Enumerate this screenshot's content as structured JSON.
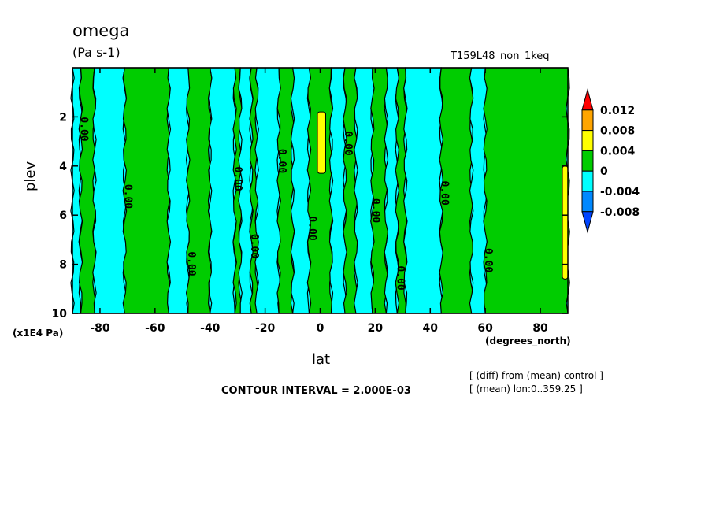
{
  "chart_data": {
    "type": "heatmap",
    "title": "omega",
    "units": "(Pa s-1)",
    "experiment": "T159L48_non_1keq",
    "xlabel": "lat",
    "x_units": "(degrees_north)",
    "ylabel": "plev",
    "y_units": "(x1E4 Pa)",
    "x_ticks": [
      "-80",
      "-60",
      "-40",
      "-20",
      "0",
      "20",
      "40",
      "60",
      "80"
    ],
    "x_tick_values": [
      -80,
      -60,
      -40,
      -20,
      0,
      20,
      40,
      60,
      80
    ],
    "y_ticks": [
      "2",
      "4",
      "6",
      "8",
      "10"
    ],
    "y_tick_values": [
      2,
      4,
      6,
      8,
      10
    ],
    "xlim": [
      -90,
      90
    ],
    "ylim": [
      10,
      0
    ],
    "contour_interval_text": "CONTOUR INTERVAL = 2.000E-03",
    "contour_label": "0.00",
    "notes": [
      "[ (diff) from (mean) control ]",
      "[ (mean) lon:0..359.25 ]"
    ],
    "colorbar": {
      "levels": [
        "0.012",
        "0.008",
        "0.004",
        "0",
        "-0.004",
        "-0.008"
      ],
      "colors": [
        "#ff0000",
        "#ffa500",
        "#ffff00",
        "#00cc00",
        "#00ffff",
        "#0088ff",
        "#0044ff"
      ]
    },
    "bands": [
      {
        "lat": [
          -90,
          -87
        ],
        "sign": "neg"
      },
      {
        "lat": [
          -87,
          -82
        ],
        "sign": "pos"
      },
      {
        "lat": [
          -82,
          -71
        ],
        "sign": "neg"
      },
      {
        "lat": [
          -71,
          -55
        ],
        "sign": "pos"
      },
      {
        "lat": [
          -55,
          -48
        ],
        "sign": "neg"
      },
      {
        "lat": [
          -48,
          -40
        ],
        "sign": "pos"
      },
      {
        "lat": [
          -40,
          -31
        ],
        "sign": "neg"
      },
      {
        "lat": [
          -31,
          -29
        ],
        "sign": "pos"
      },
      {
        "lat": [
          -29,
          -25
        ],
        "sign": "neg"
      },
      {
        "lat": [
          -25,
          -23
        ],
        "sign": "pos"
      },
      {
        "lat": [
          -23,
          -15
        ],
        "sign": "neg"
      },
      {
        "lat": [
          -15,
          -10
        ],
        "sign": "pos"
      },
      {
        "lat": [
          -10,
          -4
        ],
        "sign": "neg"
      },
      {
        "lat": [
          -4,
          4
        ],
        "sign": "pos"
      },
      {
        "lat": [
          4,
          9
        ],
        "sign": "neg"
      },
      {
        "lat": [
          9,
          13
        ],
        "sign": "pos"
      },
      {
        "lat": [
          13,
          19
        ],
        "sign": "neg"
      },
      {
        "lat": [
          19,
          24
        ],
        "sign": "pos"
      },
      {
        "lat": [
          24,
          28
        ],
        "sign": "neg"
      },
      {
        "lat": [
          28,
          31
        ],
        "sign": "pos"
      },
      {
        "lat": [
          31,
          44
        ],
        "sign": "neg"
      },
      {
        "lat": [
          44,
          55
        ],
        "sign": "pos"
      },
      {
        "lat": [
          55,
          60
        ],
        "sign": "neg"
      },
      {
        "lat": [
          60,
          90
        ],
        "sign": "pos"
      }
    ],
    "maxima": [
      {
        "lat": [
          -1,
          2
        ],
        "plev": [
          1.8,
          4.3
        ],
        "value": 0.004
      },
      {
        "lat": [
          88,
          90
        ],
        "plev": [
          4.0,
          8.6
        ],
        "value": 0.004
      }
    ]
  }
}
